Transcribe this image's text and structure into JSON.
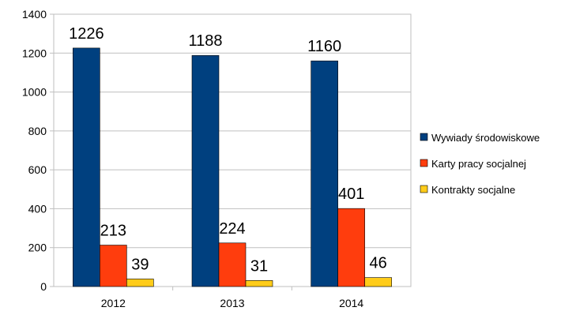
{
  "chart_data": {
    "type": "bar",
    "categories": [
      "2012",
      "2013",
      "2014"
    ],
    "series": [
      {
        "name": "Wywiady środowiskowe",
        "values": [
          1226,
          1188,
          1160
        ],
        "color": "#00407f"
      },
      {
        "name": "Karty pracy socjalnej",
        "values": [
          213,
          224,
          401
        ],
        "color": "#ff3d0d"
      },
      {
        "name": "Kontrakty socjalne",
        "values": [
          39,
          31,
          46
        ],
        "color": "#ffcc1a"
      }
    ],
    "ylim": [
      0,
      1400
    ],
    "yticks": [
      0,
      200,
      400,
      600,
      800,
      1000,
      1200,
      1400
    ],
    "grid": true,
    "legend": "right"
  }
}
